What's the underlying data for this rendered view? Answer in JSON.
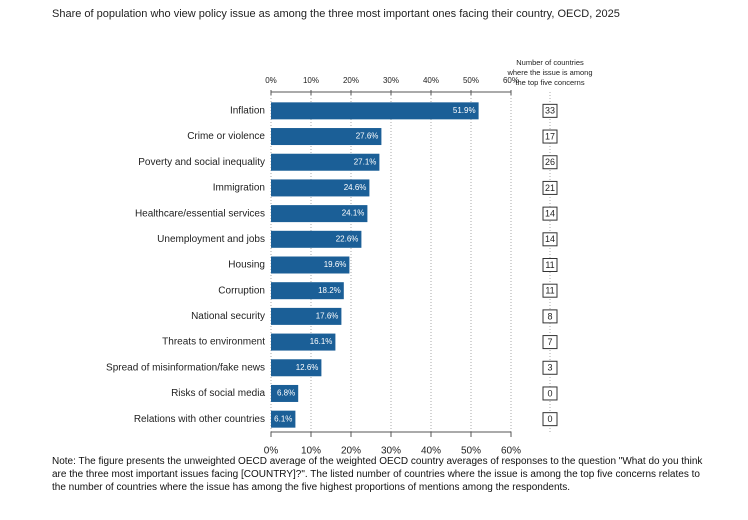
{
  "chart_data": {
    "type": "bar",
    "orientation": "horizontal",
    "title": "Share of population who view policy issue as among the three most important ones facing their country, OECD, 2025",
    "categories": [
      "Inflation",
      "Crime or violence",
      "Poverty and social inequality",
      "Immigration",
      "Healthcare/essential services",
      "Unemployment and jobs",
      "Housing",
      "Corruption",
      "National security",
      "Threats to environment",
      "Spread of misinformation/fake news",
      "Risks of social media",
      "Relations with other countries"
    ],
    "values": [
      51.9,
      27.6,
      27.1,
      24.6,
      24.1,
      22.6,
      19.6,
      18.2,
      17.6,
      16.1,
      12.6,
      6.8,
      6.1
    ],
    "value_labels": [
      "51.9%",
      "27.6%",
      "27.1%",
      "24.6%",
      "24.1%",
      "22.6%",
      "19.6%",
      "18.2%",
      "17.6%",
      "16.1%",
      "12.6%",
      "6.8%",
      "6.1%"
    ],
    "color": "#1b5f97",
    "xlim": [
      0,
      60
    ],
    "xticks": [
      {
        "value": 0,
        "label": "0%"
      },
      {
        "value": 10,
        "label": "10%"
      },
      {
        "value": 20,
        "label": "20%"
      },
      {
        "value": 30,
        "label": "30%"
      },
      {
        "value": 40,
        "label": "40%"
      },
      {
        "value": 50,
        "label": "50%"
      },
      {
        "value": 60,
        "label": "60%"
      }
    ],
    "grid": true,
    "counts_title": [
      "Number of countries",
      "where the issue is among",
      "the top five concerns"
    ],
    "counts": [
      33,
      17,
      26,
      21,
      14,
      14,
      11,
      11,
      8,
      7,
      3,
      0,
      0
    ],
    "note": "Note: The figure presents the unweighted OECD average of the weighted OECD country averages of responses to the question \"What do you think are the three most important issues facing [COUNTRY]?\". The listed number of countries where the issue is among the top five concerns relates to the number of countries where the issue has among the five highest proportions of mentions among the respondents."
  }
}
